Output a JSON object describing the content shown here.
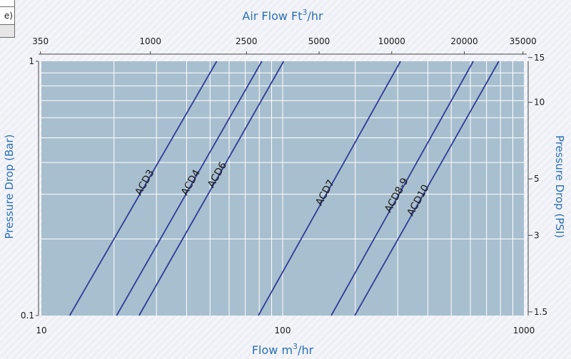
{
  "corner_fragment": "e)",
  "chart_data": {
    "type": "line",
    "scale": "log-log",
    "title": "",
    "xlabel": "Flow m³/hr",
    "xlabel_base": "Flow m",
    "xlabel_sup": "3",
    "xlabel_tail": "/hr",
    "x2label_base": "Air Flow Ft",
    "x2label_sup": "3",
    "x2label_tail": "/hr",
    "ylabel": "Pressure Drop (Bar)",
    "y2label": "Pressure Drop (PSI)",
    "xlim": [
      10,
      1000
    ],
    "ylim": [
      0.1,
      1
    ],
    "grid": true,
    "x_ticks": [
      {
        "value": 10,
        "label": "10"
      },
      {
        "value": 100,
        "label": "100"
      },
      {
        "value": 1000,
        "label": "1000"
      }
    ],
    "y_ticks": [
      {
        "value": 0.1,
        "label": "0.1"
      },
      {
        "value": 1,
        "label": "1"
      }
    ],
    "x2_ticks": [
      {
        "value": 9.91,
        "label": "350"
      },
      {
        "value": 28.3,
        "label": "1000"
      },
      {
        "value": 70.8,
        "label": "2500"
      },
      {
        "value": 141.6,
        "label": "5000"
      },
      {
        "value": 283.2,
        "label": "10000"
      },
      {
        "value": 566.3,
        "label": "20000"
      },
      {
        "value": 991,
        "label": "35000"
      }
    ],
    "y2_ticks": [
      {
        "value": 0.1034,
        "label": "1.5"
      },
      {
        "value": 0.2068,
        "label": "3"
      },
      {
        "value": 0.3447,
        "label": "5"
      },
      {
        "value": 0.6895,
        "label": "10"
      },
      {
        "value": 1.0342,
        "label": "15"
      }
    ],
    "series": [
      {
        "name": "ACD3",
        "points": [
          [
            13.1,
            0.1
          ],
          [
            53.3,
            1.0
          ]
        ],
        "label_at": 0.52
      },
      {
        "name": "ACD4",
        "points": [
          [
            20.5,
            0.1
          ],
          [
            82,
            1.0
          ]
        ],
        "label_at": 0.52
      },
      {
        "name": "ACD6",
        "points": [
          [
            25.4,
            0.1
          ],
          [
            101,
            1.0
          ]
        ],
        "label_at": 0.55
      },
      {
        "name": "ACD7",
        "points": [
          [
            79.3,
            0.1
          ],
          [
            308,
            1.0
          ]
        ],
        "label_at": 0.48
      },
      {
        "name": "ACD8-9",
        "points": [
          [
            159,
            0.1
          ],
          [
            617,
            1.0
          ]
        ],
        "label_at": 0.47
      },
      {
        "name": "ACD10",
        "points": [
          [
            199,
            0.1
          ],
          [
            787,
            1.0
          ]
        ],
        "label_at": 0.45
      }
    ],
    "colors": {
      "plot_bg": "#a8bfcf",
      "grid": "#ffffff",
      "line": "#2e3c95",
      "axis_text": "#2b6fb4"
    }
  }
}
